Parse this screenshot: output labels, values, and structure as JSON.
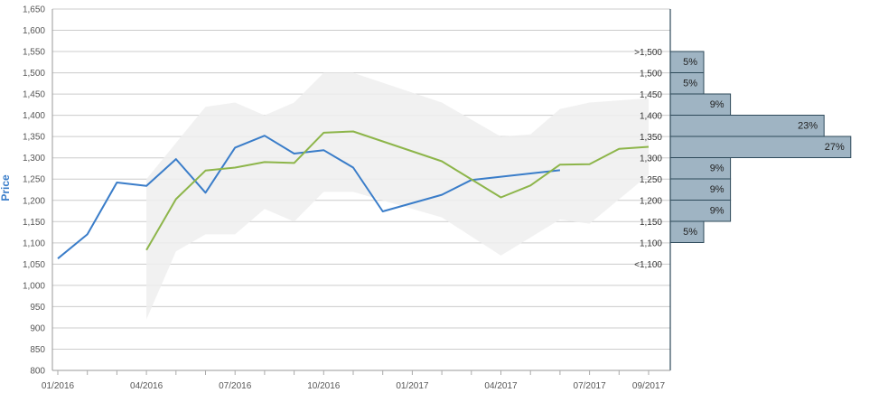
{
  "chart_data": [
    {
      "type": "line",
      "ylabel": "Price",
      "ylim": [
        800,
        1650
      ],
      "y_ticks": [
        "800",
        "850",
        "900",
        "950",
        "1,000",
        "1,050",
        "1,100",
        "1,150",
        "1,200",
        "1,250",
        "1,300",
        "1,350",
        "1,400",
        "1,450",
        "1,500",
        "1,550",
        "1,600",
        "1,650"
      ],
      "x_ticks": [
        "01/2016",
        "04/2016",
        "07/2016",
        "10/2016",
        "01/2017",
        "04/2017",
        "07/2017",
        "09/2017"
      ],
      "grid": true,
      "series": [
        {
          "color": "#3a7dc9",
          "points": [
            [
              "2016-01",
              1063
            ],
            [
              "2016-02",
              1120
            ],
            [
              "2016-03",
              1242
            ],
            [
              "2016-04",
              1234
            ],
            [
              "2016-05",
              1297
            ],
            [
              "2016-06",
              1218
            ],
            [
              "2016-07",
              1324
            ],
            [
              "2016-08",
              1352
            ],
            [
              "2016-09",
              1310
            ],
            [
              "2016-10",
              1318
            ],
            [
              "2016-11",
              1277
            ],
            [
              "2016-12",
              1174
            ],
            [
              "2017-02",
              1213
            ],
            [
              "2017-03",
              1248
            ],
            [
              "2017-06",
              1271
            ]
          ]
        },
        {
          "color": "#8db54a",
          "points": [
            [
              "2016-04",
              1083
            ],
            [
              "2016-05",
              1203
            ],
            [
              "2016-06",
              1270
            ],
            [
              "2016-07",
              1277
            ],
            [
              "2016-08",
              1290
            ],
            [
              "2016-09",
              1288
            ],
            [
              "2016-10",
              1359
            ],
            [
              "2016-11",
              1362
            ],
            [
              "2017-02",
              1292
            ],
            [
              "2017-04",
              1207
            ],
            [
              "2017-05",
              1235
            ],
            [
              "2017-06",
              1284
            ],
            [
              "2017-07",
              1285
            ],
            [
              "2017-08",
              1321
            ],
            [
              "2017-09",
              1326
            ]
          ]
        }
      ],
      "range_band": {
        "color": "#eeeeee",
        "upper": [
          [
            "2016-04",
            1250
          ],
          [
            "2016-06",
            1420
          ],
          [
            "2016-07",
            1430
          ],
          [
            "2016-08",
            1400
          ],
          [
            "2016-09",
            1430
          ],
          [
            "2016-10",
            1500
          ],
          [
            "2016-11",
            1500
          ],
          [
            "2017-02",
            1430
          ],
          [
            "2017-04",
            1350
          ],
          [
            "2017-05",
            1355
          ],
          [
            "2017-06",
            1415
          ],
          [
            "2017-07",
            1430
          ],
          [
            "2017-09",
            1440
          ]
        ],
        "lower": [
          [
            "2016-04",
            920
          ],
          [
            "2016-05",
            1080
          ],
          [
            "2016-06",
            1120
          ],
          [
            "2016-07",
            1120
          ],
          [
            "2016-08",
            1180
          ],
          [
            "2016-09",
            1150
          ],
          [
            "2016-10",
            1220
          ],
          [
            "2016-11",
            1220
          ],
          [
            "2017-02",
            1160
          ],
          [
            "2017-04",
            1070
          ],
          [
            "2017-06",
            1155
          ],
          [
            "2017-07",
            1145
          ],
          [
            "2017-09",
            1260
          ]
        ]
      }
    },
    {
      "type": "bar",
      "orientation": "horizontal",
      "color": "#9fb4c3",
      "categories": [
        ">1,500",
        "1,500",
        "1,450",
        "1,400",
        "1,350",
        "1,300",
        "1,250",
        "1,200",
        "1,150",
        "1,100",
        "<1,100"
      ],
      "values": [
        5,
        5,
        9,
        23,
        27,
        9,
        9,
        9,
        5,
        null,
        null
      ],
      "labels": [
        "5%",
        "5%",
        "9%",
        "23%",
        "27%",
        "9%",
        "9%",
        "9%",
        "5%",
        "",
        ""
      ]
    }
  ]
}
